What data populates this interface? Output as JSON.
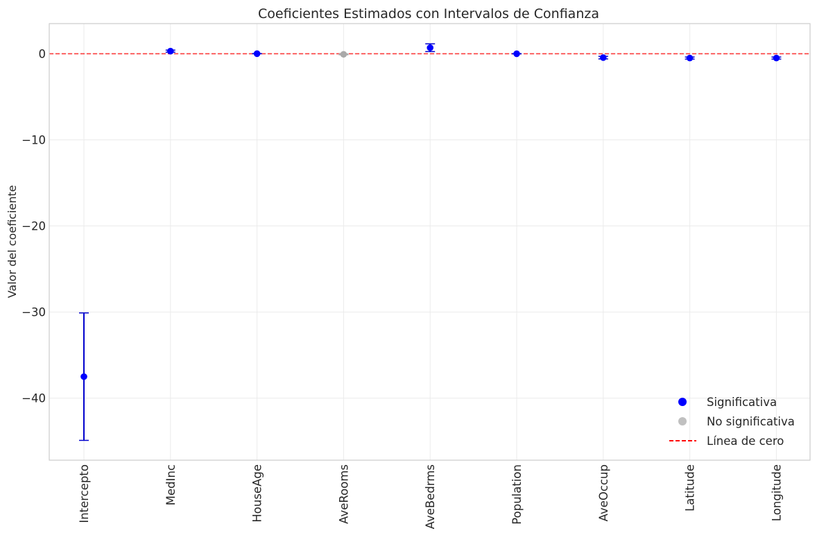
{
  "chart_data": {
    "type": "scatter",
    "title": "Coeficientes Estimados con Intervalos de Confianza",
    "xlabel": "",
    "ylabel": "Valor del coeficiente",
    "ylim": [
      -47.2,
      3.5
    ],
    "yticks": [
      0,
      -10,
      -20,
      -30,
      -40
    ],
    "ytick_labels": [
      "0",
      "−10",
      "−20",
      "−30",
      "−40"
    ],
    "grid": true,
    "legend_position": "lower-right",
    "categories": [
      "Intercepto",
      "MedInc",
      "HouseAge",
      "AveRooms",
      "AveBedrms",
      "Population",
      "AveOccup",
      "Latitude",
      "Longitude"
    ],
    "coefficients": [
      {
        "name": "Intercepto",
        "value": -37.5,
        "ci": [
          -44.9,
          -30.1
        ],
        "significant": true
      },
      {
        "name": "MedInc",
        "value": 0.3,
        "ci": [
          0.18,
          0.42
        ],
        "significant": true
      },
      {
        "name": "HouseAge",
        "value": 0.01,
        "ci": [
          0.0,
          0.02
        ],
        "significant": true
      },
      {
        "name": "AveRooms",
        "value": -0.07,
        "ci": [
          -0.12,
          -0.02
        ],
        "significant": false
      },
      {
        "name": "AveBedrms",
        "value": 0.7,
        "ci": [
          0.25,
          1.15
        ],
        "significant": true
      },
      {
        "name": "Population",
        "value": 0.0,
        "ci": [
          -0.01,
          0.01
        ],
        "significant": true
      },
      {
        "name": "AveOccup",
        "value": -0.45,
        "ci": [
          -0.6,
          -0.3
        ],
        "significant": true
      },
      {
        "name": "Latitude",
        "value": -0.5,
        "ci": [
          -0.62,
          -0.38
        ],
        "significant": true
      },
      {
        "name": "Longitude",
        "value": -0.5,
        "ci": [
          -0.62,
          -0.38
        ],
        "significant": true
      }
    ],
    "reference_line": {
      "y": 0
    },
    "legend": [
      {
        "label": "Significativa",
        "kind": "marker",
        "color": "#0000ff"
      },
      {
        "label": "No significativa",
        "kind": "marker",
        "color": "#c0c0c0"
      },
      {
        "label": "Línea de cero",
        "kind": "dashed-line",
        "color": "#ff0000"
      }
    ],
    "colors": {
      "significant": "#0000ff",
      "not_significant": "#a9a9a9",
      "zero_line": "#ff0000",
      "errorbar": "#0000cd",
      "grid": "#ebebeb",
      "frame": "#cccccc"
    }
  }
}
